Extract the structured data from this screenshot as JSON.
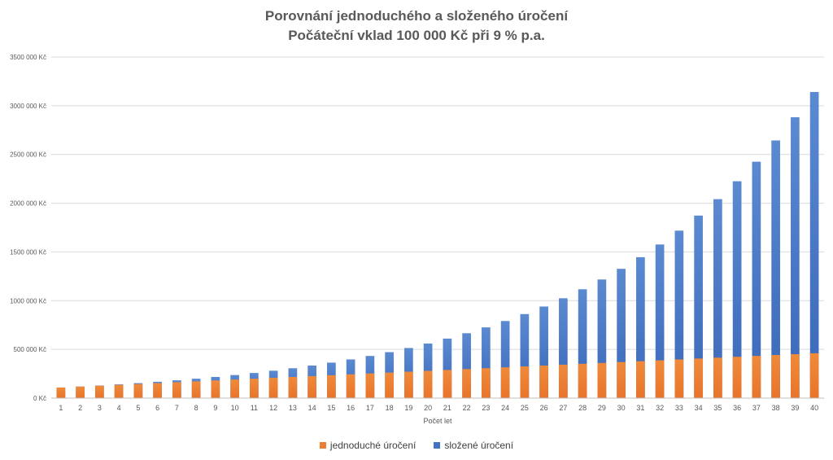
{
  "chart_data": {
    "type": "bar",
    "title": "Porovnání jednoduchého a složeného úročení",
    "subtitle": "Počáteční vklad 100 000 Kč při 9 % p.a.",
    "xlabel": "Počet let",
    "ylabel": "",
    "ylim": [
      0,
      3500000
    ],
    "yticks": [
      0,
      500000,
      1000000,
      1500000,
      2000000,
      2500000,
      3000000,
      3500000
    ],
    "ytick_labels": [
      "0 Kč",
      "500 000 Kč",
      "1000 000 Kč",
      "1500 000 Kč",
      "2000 000 Kč",
      "2500 000 Kč",
      "3000 000 Kč",
      "3500 000 Kč"
    ],
    "grid": true,
    "legend_position": "bottom",
    "categories": [
      "1",
      "2",
      "3",
      "4",
      "5",
      "6",
      "7",
      "8",
      "9",
      "10",
      "11",
      "12",
      "13",
      "14",
      "15",
      "16",
      "17",
      "18",
      "19",
      "20",
      "21",
      "22",
      "23",
      "24",
      "25",
      "26",
      "27",
      "28",
      "29",
      "30",
      "31",
      "32",
      "33",
      "34",
      "35",
      "36",
      "37",
      "38",
      "39",
      "40"
    ],
    "series": [
      {
        "name": "jednoduché úročení",
        "color": "#ED7D31",
        "values": [
          109000,
          118000,
          127000,
          136000,
          145000,
          154000,
          163000,
          172000,
          181000,
          190000,
          199000,
          208000,
          217000,
          226000,
          235000,
          244000,
          253000,
          262000,
          271000,
          280000,
          289000,
          298000,
          307000,
          316000,
          325000,
          334000,
          343000,
          352000,
          361000,
          370000,
          379000,
          388000,
          397000,
          406000,
          415000,
          424000,
          433000,
          442000,
          451000,
          460000
        ]
      },
      {
        "name": "složené úročení",
        "color": "#4472C4",
        "values": [
          109000,
          118810,
          129503,
          141158,
          153862,
          167710,
          182804,
          199256,
          217189,
          236736,
          258043,
          281266,
          306580,
          334173,
          364248,
          397031,
          432763,
          471712,
          514166,
          560441,
          610880,
          665860,
          725787,
          791108,
          862308,
          939916,
          1024508,
          1116714,
          1217218,
          1326768,
          1446177,
          1576333,
          1718203,
          1872841,
          2041397,
          2225123,
          2425384,
          2643668,
          2881598,
          3140942
        ]
      }
    ]
  }
}
